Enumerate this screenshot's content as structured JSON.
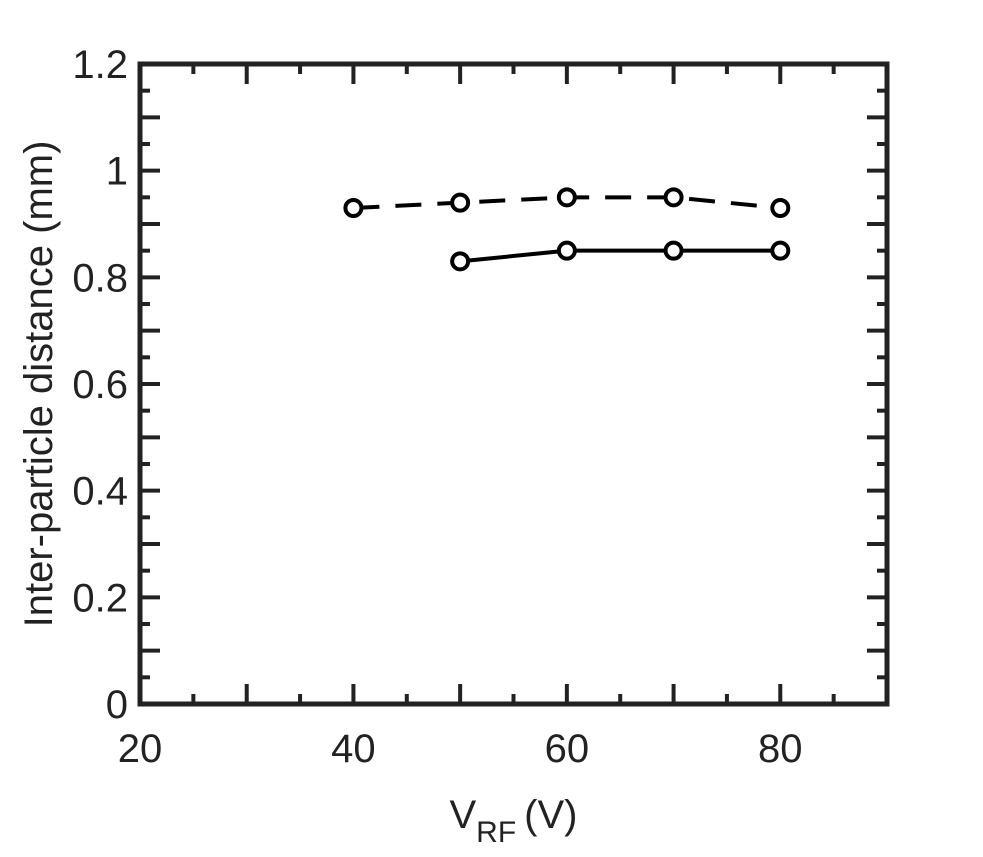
{
  "chart_data": {
    "type": "line",
    "xlabel": "V",
    "xlabel_subscript": "RF",
    "xlabel_unit": "(V)",
    "ylabel": "Inter-particle distance (mm)",
    "xlim": [
      20,
      90
    ],
    "ylim": [
      0,
      1.2
    ],
    "xticks": [
      20,
      40,
      60,
      80
    ],
    "xtick_labels": [
      "20",
      "40",
      "60",
      "80"
    ],
    "yticks": [
      0,
      0.2,
      0.4,
      0.6,
      0.8,
      1.0,
      1.2
    ],
    "ytick_labels": [
      "0",
      "0.2",
      "0.4",
      "0.6",
      "0.8",
      "1",
      "1.2"
    ],
    "grid": false,
    "series": [
      {
        "style": "dashed",
        "marker": "open-circle",
        "x": [
          40,
          50,
          60,
          70,
          80
        ],
        "y": [
          0.93,
          0.94,
          0.95,
          0.95,
          0.93
        ]
      },
      {
        "style": "solid",
        "marker": "open-circle",
        "x": [
          50,
          60,
          70,
          80
        ],
        "y": [
          0.83,
          0.85,
          0.85,
          0.85
        ]
      }
    ],
    "colors": {
      "axis": "#222222",
      "line": "#000000"
    }
  }
}
